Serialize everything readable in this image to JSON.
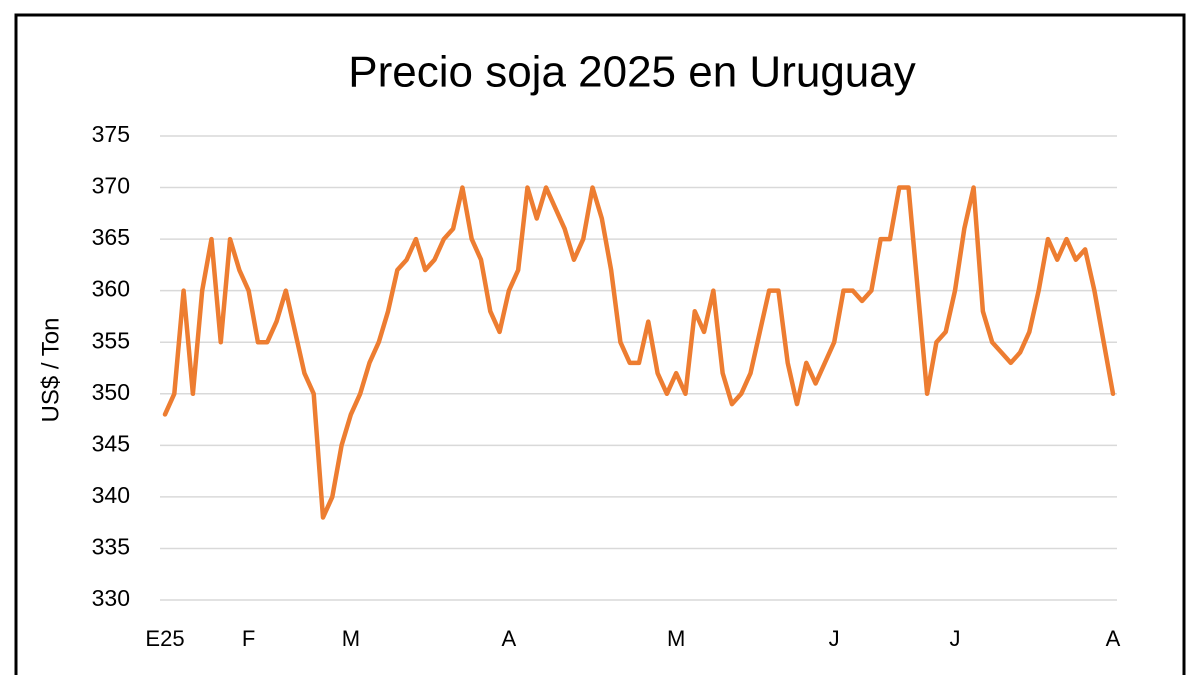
{
  "chart_data": {
    "type": "line",
    "title": "Precio soja 2025 en Uruguay",
    "y_label": "US$ / Ton",
    "categories": [
      "E25",
      null,
      null,
      null,
      null,
      null,
      null,
      null,
      null,
      "F",
      null,
      null,
      null,
      null,
      null,
      null,
      null,
      null,
      null,
      null,
      "M",
      null,
      null,
      null,
      null,
      null,
      null,
      null,
      null,
      null,
      null,
      null,
      null,
      null,
      null,
      null,
      null,
      "A",
      null,
      null,
      null,
      null,
      null,
      null,
      null,
      null,
      null,
      null,
      null,
      null,
      null,
      null,
      null,
      null,
      null,
      "M",
      null,
      null,
      null,
      null,
      null,
      null,
      null,
      null,
      null,
      null,
      null,
      null,
      null,
      null,
      null,
      null,
      "J",
      null,
      null,
      null,
      null,
      null,
      null,
      null,
      null,
      null,
      null,
      null,
      null,
      "J",
      null,
      null,
      null,
      null,
      null,
      null,
      null,
      null,
      null,
      null,
      null,
      null,
      null,
      null,
      null,
      null,
      "A"
    ],
    "values": [
      348,
      350,
      360,
      350,
      360,
      365,
      355,
      365,
      362,
      360,
      355,
      355,
      357,
      360,
      356,
      352,
      350,
      338,
      340,
      345,
      348,
      350,
      353,
      355,
      358,
      362,
      363,
      365,
      362,
      363,
      365,
      366,
      370,
      365,
      363,
      358,
      356,
      360,
      362,
      370,
      367,
      370,
      368,
      366,
      363,
      365,
      370,
      367,
      362,
      355,
      353,
      353,
      357,
      352,
      350,
      352,
      350,
      358,
      356,
      360,
      352,
      349,
      350,
      352,
      356,
      360,
      360,
      353,
      349,
      353,
      351,
      353,
      355,
      360,
      360,
      359,
      360,
      365,
      365,
      370,
      370,
      360,
      350,
      355,
      356,
      360,
      366,
      370,
      358,
      355,
      354,
      353,
      354,
      356,
      360,
      365,
      363,
      365,
      363,
      364,
      360,
      355,
      350
    ],
    "color": "#ed7d31",
    "ylim": [
      330,
      375
    ],
    "yticks": [
      330,
      335,
      340,
      345,
      350,
      355,
      360,
      365,
      370,
      375
    ],
    "grid": true
  }
}
